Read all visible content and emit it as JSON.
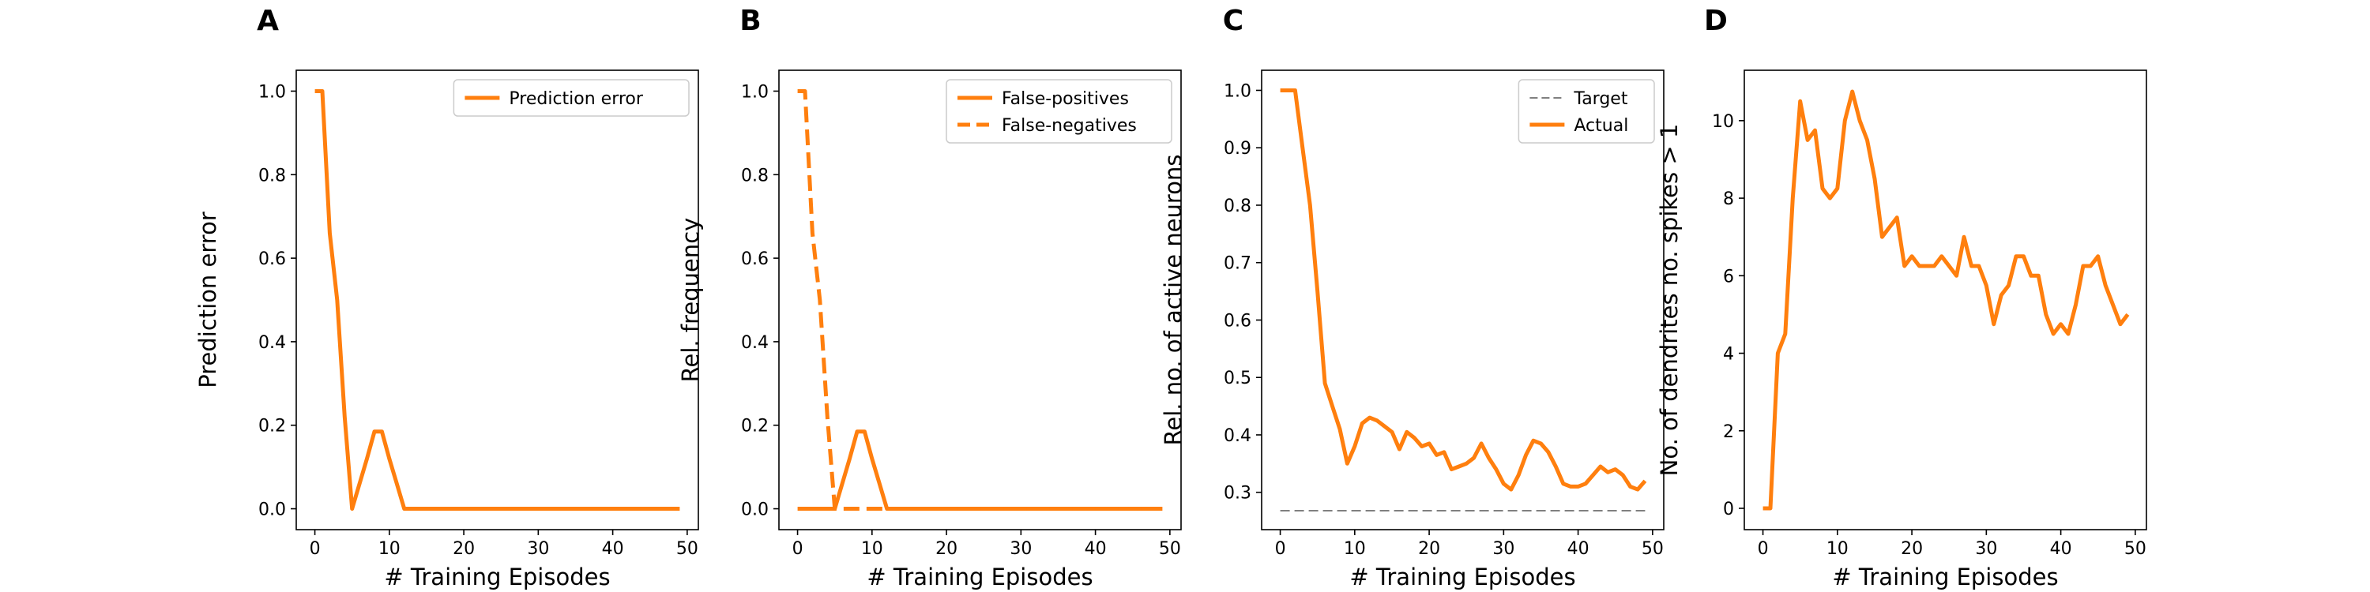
{
  "chart_data": [
    {
      "type": "line",
      "panel_label": "A",
      "xlabel": "# Training Episodes",
      "ylabel": "Prediction error",
      "xlim": [
        -2.5,
        51.5
      ],
      "ylim": [
        -0.05,
        1.05
      ],
      "xticks": [
        0,
        10,
        20,
        30,
        40,
        50
      ],
      "yticks": [
        0.0,
        0.2,
        0.4,
        0.6,
        0.8,
        1.0
      ],
      "ytick_decimals": 1,
      "legend_position": "top-right",
      "grid": false,
      "series": [
        {
          "name": "Prediction error",
          "color": "#ff7f0e",
          "dash": "solid",
          "x": [
            0,
            1,
            2,
            3,
            4,
            5,
            6,
            7,
            8,
            9,
            10,
            11,
            12,
            13,
            14,
            15,
            16,
            17,
            18,
            19,
            20,
            21,
            22,
            23,
            24,
            25,
            26,
            27,
            28,
            29,
            30,
            31,
            32,
            33,
            34,
            35,
            36,
            37,
            38,
            39,
            40,
            41,
            42,
            43,
            44,
            45,
            46,
            47,
            48,
            49
          ],
          "y": [
            1.0,
            1.0,
            0.66,
            0.5,
            0.22,
            0.0,
            0.06,
            0.12,
            0.185,
            0.185,
            0.12,
            0.06,
            0,
            0,
            0,
            0,
            0,
            0,
            0,
            0,
            0,
            0,
            0,
            0,
            0,
            0,
            0,
            0,
            0,
            0,
            0,
            0,
            0,
            0,
            0,
            0,
            0,
            0,
            0,
            0,
            0,
            0,
            0,
            0,
            0,
            0,
            0,
            0,
            0,
            0
          ]
        }
      ]
    },
    {
      "type": "line",
      "panel_label": "B",
      "xlabel": "# Training Episodes",
      "ylabel": "Rel. frequency",
      "xlim": [
        -2.5,
        51.5
      ],
      "ylim": [
        -0.05,
        1.05
      ],
      "xticks": [
        0,
        10,
        20,
        30,
        40,
        50
      ],
      "yticks": [
        0.0,
        0.2,
        0.4,
        0.6,
        0.8,
        1.0
      ],
      "ytick_decimals": 1,
      "legend_position": "top-right",
      "grid": false,
      "series": [
        {
          "name": "False-positives",
          "color": "#ff7f0e",
          "dash": "solid",
          "x": [
            0,
            1,
            2,
            3,
            4,
            5,
            6,
            7,
            8,
            9,
            10,
            11,
            12,
            13,
            14,
            15,
            16,
            17,
            18,
            19,
            20,
            21,
            22,
            23,
            24,
            25,
            26,
            27,
            28,
            29,
            30,
            31,
            32,
            33,
            34,
            35,
            36,
            37,
            38,
            39,
            40,
            41,
            42,
            43,
            44,
            45,
            46,
            47,
            48,
            49
          ],
          "y": [
            0,
            0,
            0,
            0,
            0,
            0,
            0.06,
            0.12,
            0.185,
            0.185,
            0.12,
            0.06,
            0,
            0,
            0,
            0,
            0,
            0,
            0,
            0,
            0,
            0,
            0,
            0,
            0,
            0,
            0,
            0,
            0,
            0,
            0,
            0,
            0,
            0,
            0,
            0,
            0,
            0,
            0,
            0,
            0,
            0,
            0,
            0,
            0,
            0,
            0,
            0,
            0,
            0
          ]
        },
        {
          "name": "False-negatives",
          "color": "#ff7f0e",
          "dash": "dashed",
          "x": [
            0,
            1,
            2,
            3,
            4,
            5,
            6,
            7,
            8,
            9,
            10,
            11,
            12,
            13,
            14,
            15,
            16,
            17,
            18,
            19,
            20,
            21,
            22,
            23,
            24,
            25,
            26,
            27,
            28,
            29,
            30,
            31,
            32,
            33,
            34,
            35,
            36,
            37,
            38,
            39,
            40,
            41,
            42,
            43,
            44,
            45,
            46,
            47,
            48,
            49
          ],
          "y": [
            1.0,
            1.0,
            0.66,
            0.5,
            0.22,
            0.0,
            0,
            0,
            0,
            0,
            0,
            0,
            0,
            0,
            0,
            0,
            0,
            0,
            0,
            0,
            0,
            0,
            0,
            0,
            0,
            0,
            0,
            0,
            0,
            0,
            0,
            0,
            0,
            0,
            0,
            0,
            0,
            0,
            0,
            0,
            0,
            0,
            0,
            0,
            0,
            0,
            0,
            0,
            0,
            0
          ]
        }
      ]
    },
    {
      "type": "line",
      "panel_label": "C",
      "xlabel": "# Training Episodes",
      "ylabel": "Rel. no. of active neurons",
      "xlim": [
        -2.5,
        51.5
      ],
      "ylim": [
        0.235,
        1.035
      ],
      "xticks": [
        0,
        10,
        20,
        30,
        40,
        50
      ],
      "yticks": [
        0.3,
        0.4,
        0.5,
        0.6,
        0.7,
        0.8,
        0.9,
        1.0
      ],
      "ytick_decimals": 1,
      "legend_position": "top-right",
      "grid": false,
      "series": [
        {
          "name": "Target",
          "color": "#808080",
          "dash": "dashed",
          "x": [
            0,
            49
          ],
          "y": [
            0.268,
            0.268
          ]
        },
        {
          "name": "Actual",
          "color": "#ff7f0e",
          "dash": "solid",
          "x": [
            0,
            1,
            2,
            3,
            4,
            5,
            6,
            7,
            8,
            9,
            10,
            11,
            12,
            13,
            14,
            15,
            16,
            17,
            18,
            19,
            20,
            21,
            22,
            23,
            24,
            25,
            26,
            27,
            28,
            29,
            30,
            31,
            32,
            33,
            34,
            35,
            36,
            37,
            38,
            39,
            40,
            41,
            42,
            43,
            44,
            45,
            46,
            47,
            48,
            49
          ],
          "y": [
            1.0,
            1.0,
            1.0,
            0.9,
            0.8,
            0.65,
            0.49,
            0.45,
            0.41,
            0.35,
            0.38,
            0.42,
            0.43,
            0.425,
            0.415,
            0.405,
            0.375,
            0.405,
            0.395,
            0.38,
            0.385,
            0.365,
            0.37,
            0.34,
            0.345,
            0.35,
            0.36,
            0.385,
            0.36,
            0.34,
            0.315,
            0.305,
            0.33,
            0.365,
            0.39,
            0.385,
            0.37,
            0.345,
            0.315,
            0.31,
            0.31,
            0.315,
            0.33,
            0.345,
            0.335,
            0.34,
            0.33,
            0.31,
            0.305,
            0.32
          ]
        }
      ]
    },
    {
      "type": "line",
      "panel_label": "D",
      "xlabel": "# Training Episodes",
      "ylabel": "No. of dendrites no. spikes > 1",
      "xlim": [
        -2.5,
        51.5
      ],
      "ylim": [
        -0.55,
        11.3
      ],
      "xticks": [
        0,
        10,
        20,
        30,
        40,
        50
      ],
      "yticks": [
        0,
        2,
        4,
        6,
        8,
        10
      ],
      "ytick_decimals": 0,
      "legend_position": "none",
      "grid": false,
      "series": [
        {
          "color": "#ff7f0e",
          "dash": "solid",
          "x": [
            0,
            1,
            2,
            3,
            4,
            5,
            6,
            7,
            8,
            9,
            10,
            11,
            12,
            13,
            14,
            15,
            16,
            17,
            18,
            19,
            20,
            21,
            22,
            23,
            24,
            25,
            26,
            27,
            28,
            29,
            30,
            31,
            32,
            33,
            34,
            35,
            36,
            37,
            38,
            39,
            40,
            41,
            42,
            43,
            44,
            45,
            46,
            47,
            48,
            49
          ],
          "y": [
            0,
            0,
            4.0,
            4.5,
            8.0,
            10.5,
            9.5,
            9.75,
            8.25,
            8.0,
            8.25,
            10.0,
            10.75,
            10.0,
            9.5,
            8.5,
            7.0,
            7.25,
            7.5,
            6.25,
            6.5,
            6.25,
            6.25,
            6.25,
            6.5,
            6.25,
            6.0,
            7.0,
            6.25,
            6.25,
            5.75,
            4.75,
            5.5,
            5.75,
            6.5,
            6.5,
            6.0,
            6.0,
            5.0,
            4.5,
            4.75,
            4.5,
            5.25,
            6.25,
            6.25,
            6.5,
            5.75,
            5.25,
            4.75,
            5.0
          ]
        }
      ]
    }
  ]
}
